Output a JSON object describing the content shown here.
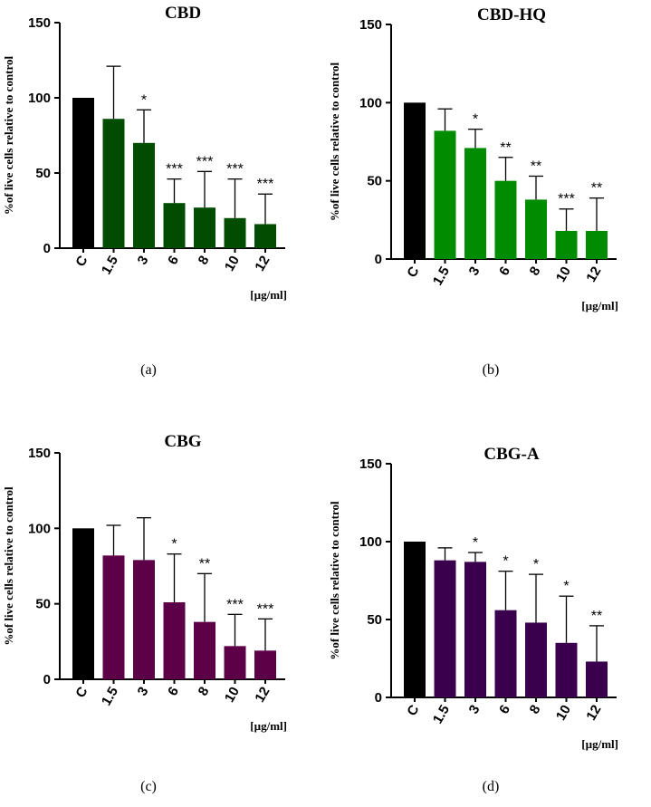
{
  "chart_data": [
    {
      "type": "bar",
      "panel_label": "(a)",
      "title": "CBD",
      "ylabel": "%of live cells relative to control",
      "unit_label": "[µg/ml]",
      "categories": [
        "C",
        "1.5",
        "3",
        "6",
        "8",
        "10",
        "12"
      ],
      "values": [
        100,
        86,
        70,
        30,
        27,
        20,
        16
      ],
      "error_upper": [
        100,
        121,
        92,
        46,
        51,
        46,
        36
      ],
      "significance": [
        "",
        "",
        "*",
        "***",
        "***",
        "***",
        "***"
      ],
      "bar_colors": [
        "#000000",
        "#004c00",
        "#004c00",
        "#004c00",
        "#004c00",
        "#004c00",
        "#004c00"
      ],
      "ylim": [
        0,
        150
      ],
      "yticks": [
        0,
        50,
        100,
        150
      ]
    },
    {
      "type": "bar",
      "panel_label": "(b)",
      "title": "CBD-HQ",
      "ylabel": "%of live cells relative to control",
      "unit_label": "[µg/ml]",
      "categories": [
        "C",
        "1.5",
        "3",
        "6",
        "8",
        "10",
        "12"
      ],
      "values": [
        100,
        82,
        71,
        50,
        38,
        18,
        18
      ],
      "error_upper": [
        100,
        96,
        83,
        65,
        53,
        32,
        39
      ],
      "significance": [
        "",
        "",
        "*",
        "**",
        "**",
        "***",
        "**"
      ],
      "bar_colors": [
        "#000000",
        "#008c00",
        "#008c00",
        "#008c00",
        "#008c00",
        "#008c00",
        "#008c00"
      ],
      "ylim": [
        0,
        150
      ],
      "yticks": [
        0,
        50,
        100,
        150
      ]
    },
    {
      "type": "bar",
      "panel_label": "(c)",
      "title": "CBG",
      "ylabel": "%of live cells relative to control",
      "unit_label": "[µg/ml]",
      "categories": [
        "C",
        "1.5",
        "3",
        "6",
        "8",
        "10",
        "12"
      ],
      "values": [
        100,
        82,
        79,
        51,
        38,
        22,
        19
      ],
      "error_upper": [
        100,
        102,
        107,
        83,
        70,
        43,
        40
      ],
      "significance": [
        "",
        "",
        "",
        "*",
        "**",
        "***",
        "***"
      ],
      "bar_colors": [
        "#000000",
        "#5c0048",
        "#5c0048",
        "#5c0048",
        "#5c0048",
        "#5c0048",
        "#5c0048"
      ],
      "ylim": [
        0,
        150
      ],
      "yticks": [
        0,
        50,
        100,
        150
      ]
    },
    {
      "type": "bar",
      "panel_label": "(d)",
      "title": "CBG-A",
      "ylabel": "%of live cells relative to control",
      "unit_label": "[µg/ml]",
      "categories": [
        "C",
        "1.5",
        "3",
        "6",
        "8",
        "10",
        "12"
      ],
      "values": [
        100,
        88,
        87,
        56,
        48,
        35,
        23
      ],
      "error_upper": [
        100,
        96,
        93,
        81,
        79,
        65,
        46
      ],
      "significance": [
        "",
        "",
        "*",
        "*",
        "*",
        "*",
        "**"
      ],
      "bar_colors": [
        "#000000",
        "#3a004e",
        "#3a004e",
        "#3a004e",
        "#3a004e",
        "#3a004e",
        "#3a004e"
      ],
      "ylim": [
        0,
        150
      ],
      "yticks": [
        0,
        50,
        100,
        150
      ]
    }
  ]
}
